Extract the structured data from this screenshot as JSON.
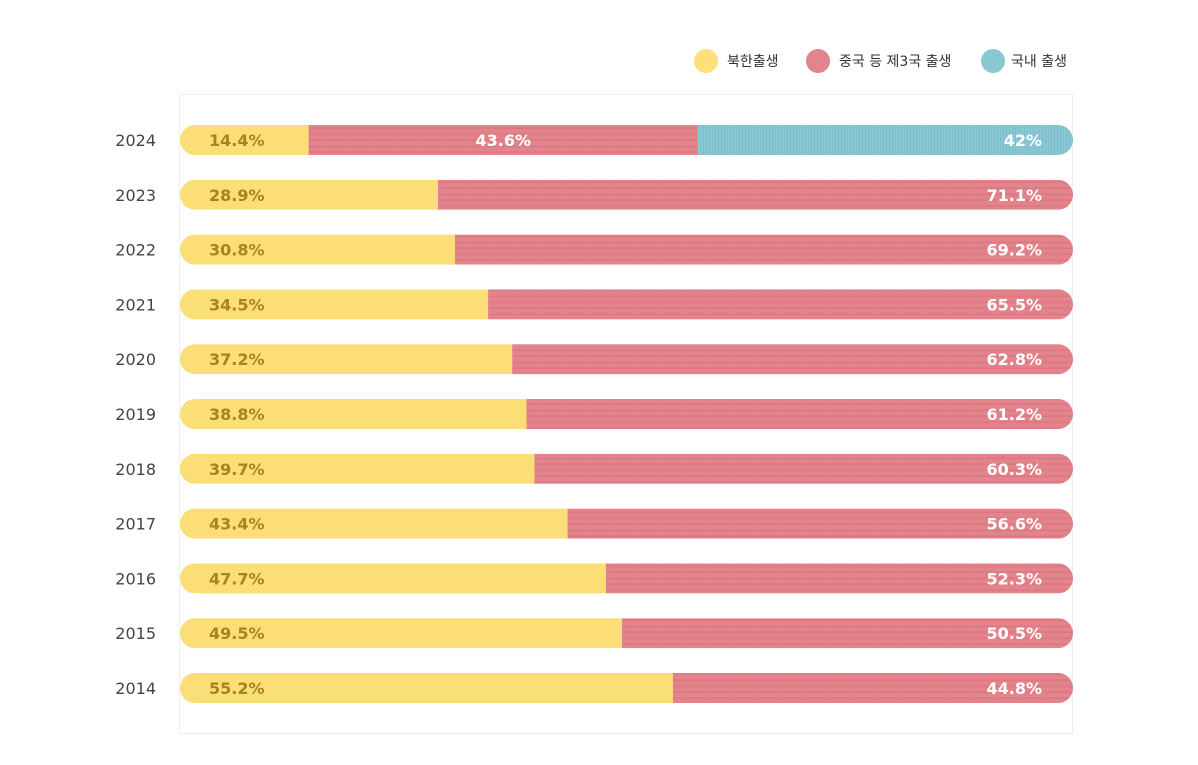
{
  "chart_data": {
    "type": "bar",
    "orientation": "horizontal",
    "stacked": true,
    "normalized_percent": true,
    "title": "",
    "xlabel": "",
    "ylabel": "",
    "xlim": [
      0,
      100
    ],
    "grid": false,
    "legend_position": "top-right",
    "categories": [
      "2024",
      "2023",
      "2022",
      "2021",
      "2020",
      "2019",
      "2018",
      "2017",
      "2016",
      "2015",
      "2014"
    ],
    "series": [
      {
        "name": "북한출생",
        "color": "#fde07a",
        "values": [
          14.4,
          28.9,
          30.8,
          34.5,
          37.2,
          38.8,
          39.7,
          43.4,
          47.7,
          49.5,
          55.2
        ],
        "labels": [
          "14.4%",
          "28.9%",
          "30.8%",
          "34.5%",
          "37.2%",
          "38.8%",
          "39.7%",
          "43.4%",
          "47.7%",
          "49.5%",
          "55.2%"
        ]
      },
      {
        "name": "중국 등 제3국 출생",
        "color": "#e3838c",
        "values": [
          43.6,
          71.1,
          69.2,
          65.5,
          62.8,
          61.2,
          60.3,
          56.6,
          52.3,
          50.5,
          44.8
        ],
        "labels": [
          "43.6%",
          "71.1%",
          "69.2%",
          "65.5%",
          "62.8%",
          "61.2%",
          "60.3%",
          "56.6%",
          "52.3%",
          "50.5%",
          "44.8%"
        ]
      },
      {
        "name": "국내 출생",
        "color": "#89c8d3",
        "values": [
          42,
          0,
          0,
          0,
          0,
          0,
          0,
          0,
          0,
          0,
          0
        ],
        "labels": [
          "42%",
          "",
          "",
          "",
          "",
          "",
          "",
          "",
          "",
          "",
          ""
        ]
      }
    ]
  }
}
